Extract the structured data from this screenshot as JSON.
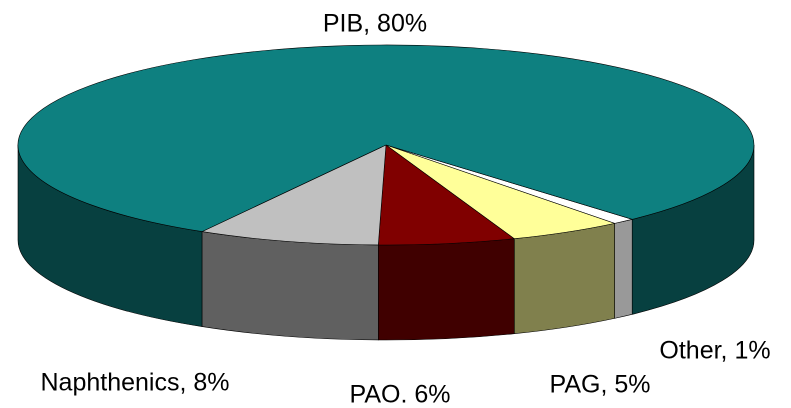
{
  "chart_data": {
    "type": "pie3d",
    "categories": [
      "PIB",
      "Naphthenics",
      "PAO",
      "PAG",
      "Other"
    ],
    "values": [
      80,
      8,
      6,
      5,
      1
    ],
    "value_labels": [
      "PIB, 80%",
      "Naphthenics, 8%",
      "PAO. 6%",
      "PAG, 5%",
      "Other, 1%"
    ],
    "colors": [
      "#0e8080",
      "#c0c0c0",
      "#800000",
      "#ffff99",
      "#ffffff"
    ]
  }
}
